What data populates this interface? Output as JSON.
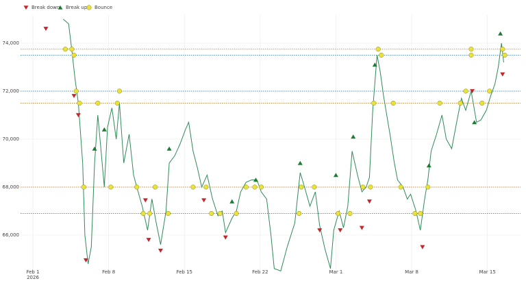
{
  "chart_data": {
    "type": "line",
    "legend": [
      "Break down",
      "Break up",
      "Bounce"
    ],
    "xlim": [
      -1.14,
      45.06
    ],
    "ylim": [
      64370,
      75170
    ],
    "xticks": [
      {
        "value": 0,
        "label": "Feb 1"
      },
      {
        "value": 7,
        "label": "Feb 8"
      },
      {
        "value": 14,
        "label": "Feb 15"
      },
      {
        "value": 21,
        "label": "Feb 22"
      },
      {
        "value": 28,
        "label": "Mar 1"
      },
      {
        "value": 35,
        "label": "Mar 8"
      },
      {
        "value": 42,
        "label": "Mar 15"
      }
    ],
    "x_year_label": "2026",
    "yticks": [
      {
        "value": 66000,
        "label": "66,000"
      },
      {
        "value": 68000,
        "label": "68,000"
      },
      {
        "value": 70000,
        "label": "70,000"
      },
      {
        "value": 72000,
        "label": "72,000"
      },
      {
        "value": 74000,
        "label": "74,000"
      }
    ],
    "grid": true,
    "levels": [
      {
        "value": 73750,
        "color": "#d98c3a"
      },
      {
        "value": 73500,
        "color": "#4a90c2"
      },
      {
        "value": 72000,
        "color": "#4a90c2"
      },
      {
        "value": 71500,
        "color": "#d98c3a"
      },
      {
        "value": 68000,
        "color": "#d98c3a"
      },
      {
        "value": 66900,
        "color": "#4a90c2"
      }
    ],
    "price": {
      "color": "#2e8b57",
      "x": [
        2.8,
        3.3,
        3.6,
        3.9,
        4.2,
        4.6,
        4.8,
        5.1,
        5.4,
        5.7,
        6.0,
        6.3,
        6.6,
        6.9,
        7.3,
        7.7,
        8.0,
        8.4,
        8.9,
        9.3,
        9.6,
        10.1,
        10.6,
        11.0,
        11.4,
        11.8,
        12.3,
        12.6,
        13.1,
        13.6,
        14.1,
        14.4,
        14.8,
        15.2,
        15.6,
        16.1,
        16.6,
        17.1,
        17.5,
        17.8,
        18.4,
        18.8,
        19.2,
        19.7,
        20.2,
        20.7,
        21.1,
        21.6,
        22.0,
        22.3,
        22.9,
        23.5,
        24.2,
        24.7,
        25.1,
        25.6,
        26.1,
        26.5,
        27.0,
        27.5,
        27.8,
        28.3,
        28.7,
        29.1,
        29.5,
        30.0,
        30.4,
        30.8,
        31.1,
        31.4,
        31.8,
        32.1,
        32.4,
        32.7,
        33.0,
        33.4,
        33.7,
        34.2,
        34.6,
        34.9,
        35.4,
        35.8,
        36.2,
        36.5,
        36.8,
        37.3,
        37.8,
        38.2,
        38.7,
        39.2,
        39.6,
        40.0,
        40.5,
        41.0,
        41.4,
        41.9,
        42.3,
        42.7,
        43.0,
        43.3,
        43.5
      ],
      "values": [
        75000,
        74800,
        73700,
        72500,
        71500,
        69000,
        66000,
        64800,
        65500,
        69000,
        71000,
        69500,
        68000,
        70500,
        71300,
        70000,
        71500,
        69000,
        70200,
        68500,
        68000,
        67200,
        66200,
        67500,
        66500,
        65600,
        67000,
        69000,
        69300,
        69800,
        70400,
        70700,
        69500,
        68800,
        68000,
        68500,
        67500,
        66800,
        67000,
        66100,
        66700,
        67000,
        67800,
        68200,
        68300,
        68300,
        67800,
        67500,
        66000,
        64600,
        64500,
        65500,
        66500,
        68600,
        68000,
        67200,
        67800,
        66400,
        65400,
        64600,
        66200,
        67000,
        66300,
        67200,
        69500,
        68500,
        67800,
        68000,
        68400,
        71200,
        73500,
        72800,
        71800,
        71000,
        70200,
        69000,
        68300,
        68000,
        67500,
        67700,
        67000,
        66200,
        67500,
        68300,
        69500,
        70200,
        71000,
        70000,
        69600,
        70800,
        71700,
        71200,
        72000,
        70700,
        70800,
        71200,
        71800,
        72300,
        73000,
        74000,
        73200
      ]
    },
    "markers": [
      {
        "name": "Break down",
        "shape": "down",
        "color": "#c0282d",
        "x": [
          1.2,
          3.8,
          4.2,
          4.9,
          10.4,
          10.7,
          11.8,
          15.8,
          17.8,
          26.5,
          28.4,
          30.4,
          31.1,
          36.0,
          40.6,
          43.4
        ],
        "values": [
          74600,
          71800,
          71000,
          64950,
          67450,
          65800,
          65350,
          67450,
          65900,
          66200,
          66200,
          66300,
          67400,
          65500,
          72000,
          72700
        ]
      },
      {
        "name": "Break up",
        "shape": "up",
        "color": "#1e7b34",
        "x": [
          5.7,
          6.6,
          12.6,
          18.4,
          20.6,
          24.7,
          28.0,
          29.6,
          31.6,
          36.6,
          40.8,
          43.2
        ],
        "values": [
          69600,
          70400,
          69600,
          67400,
          68300,
          69000,
          68500,
          70100,
          73100,
          68900,
          70700,
          74400
        ]
      },
      {
        "name": "Bounce",
        "shape": "circle",
        "color": "#e8e23a",
        "x": [
          3.0,
          3.6,
          3.8,
          4.0,
          4.3,
          4.7,
          6.0,
          7.2,
          7.8,
          8.0,
          9.6,
          10.2,
          10.8,
          11.3,
          12.5,
          14.8,
          16.0,
          16.5,
          17.3,
          18.8,
          19.7,
          20.5,
          21.1,
          24.6,
          24.8,
          26.0,
          28.2,
          29.3,
          30.5,
          31.2,
          31.5,
          31.9,
          32.2,
          33.3,
          34.0,
          35.3,
          35.8,
          36.5,
          37.6,
          39.5,
          40.0,
          40.5,
          40.5,
          41.5,
          42.2,
          43.4,
          43.6
        ],
        "values": [
          73750,
          73750,
          73500,
          72000,
          71500,
          68000,
          71500,
          68000,
          71500,
          72000,
          68000,
          66900,
          66900,
          68000,
          66900,
          68000,
          68000,
          66900,
          66900,
          66900,
          68000,
          68000,
          68000,
          66900,
          68000,
          68000,
          66900,
          66900,
          68000,
          68000,
          71500,
          73750,
          73500,
          71500,
          68000,
          66900,
          66900,
          68000,
          71500,
          71500,
          72000,
          73750,
          73500,
          71500,
          72000,
          73750,
          73500
        ]
      }
    ]
  }
}
